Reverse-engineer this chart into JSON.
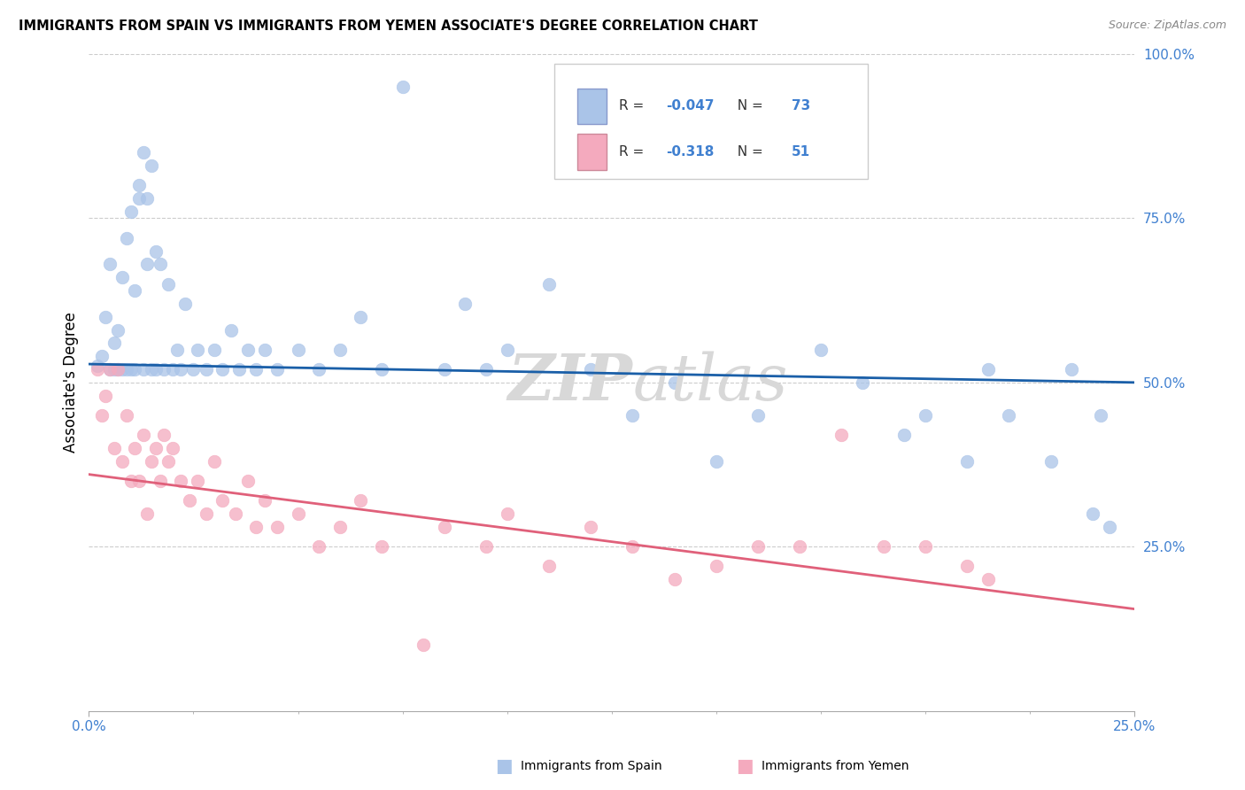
{
  "title": "IMMIGRANTS FROM SPAIN VS IMMIGRANTS FROM YEMEN ASSOCIATE'S DEGREE CORRELATION CHART",
  "source": "Source: ZipAtlas.com",
  "ylabel": "Associate's Degree",
  "xlim": [
    0.0,
    0.25
  ],
  "ylim": [
    0.0,
    1.0
  ],
  "spain_R": -0.047,
  "spain_N": 73,
  "yemen_R": -0.318,
  "yemen_N": 51,
  "color_spain": "#aac4e8",
  "color_yemen": "#f4aabe",
  "color_spain_line": "#1a5fa8",
  "color_yemen_line": "#e0607a",
  "color_axis_labels": "#4080d0",
  "background_color": "#ffffff",
  "grid_color": "#cccccc",
  "watermark_color": "#d8d8d8",
  "spain_x": [
    0.002,
    0.003,
    0.004,
    0.005,
    0.005,
    0.006,
    0.006,
    0.007,
    0.007,
    0.008,
    0.008,
    0.009,
    0.009,
    0.01,
    0.01,
    0.011,
    0.011,
    0.012,
    0.012,
    0.013,
    0.013,
    0.014,
    0.014,
    0.015,
    0.015,
    0.016,
    0.016,
    0.017,
    0.018,
    0.019,
    0.02,
    0.021,
    0.022,
    0.023,
    0.025,
    0.026,
    0.028,
    0.03,
    0.032,
    0.034,
    0.036,
    0.038,
    0.04,
    0.042,
    0.045,
    0.05,
    0.055,
    0.06,
    0.065,
    0.07,
    0.075,
    0.085,
    0.09,
    0.095,
    0.1,
    0.11,
    0.12,
    0.13,
    0.14,
    0.15,
    0.16,
    0.175,
    0.185,
    0.195,
    0.2,
    0.21,
    0.215,
    0.22,
    0.23,
    0.235,
    0.24,
    0.242,
    0.244
  ],
  "spain_y": [
    0.525,
    0.54,
    0.6,
    0.52,
    0.68,
    0.52,
    0.56,
    0.52,
    0.58,
    0.52,
    0.66,
    0.52,
    0.72,
    0.52,
    0.76,
    0.52,
    0.64,
    0.78,
    0.8,
    0.85,
    0.52,
    0.78,
    0.68,
    0.83,
    0.52,
    0.7,
    0.52,
    0.68,
    0.52,
    0.65,
    0.52,
    0.55,
    0.52,
    0.62,
    0.52,
    0.55,
    0.52,
    0.55,
    0.52,
    0.58,
    0.52,
    0.55,
    0.52,
    0.55,
    0.52,
    0.55,
    0.52,
    0.55,
    0.6,
    0.52,
    0.95,
    0.52,
    0.62,
    0.52,
    0.55,
    0.65,
    0.52,
    0.45,
    0.5,
    0.38,
    0.45,
    0.55,
    0.5,
    0.42,
    0.45,
    0.38,
    0.52,
    0.45,
    0.38,
    0.52,
    0.3,
    0.45,
    0.28
  ],
  "yemen_x": [
    0.002,
    0.003,
    0.004,
    0.005,
    0.006,
    0.007,
    0.008,
    0.009,
    0.01,
    0.011,
    0.012,
    0.013,
    0.014,
    0.015,
    0.016,
    0.017,
    0.018,
    0.019,
    0.02,
    0.022,
    0.024,
    0.026,
    0.028,
    0.03,
    0.032,
    0.035,
    0.038,
    0.04,
    0.042,
    0.045,
    0.05,
    0.055,
    0.06,
    0.065,
    0.07,
    0.08,
    0.085,
    0.095,
    0.1,
    0.11,
    0.12,
    0.13,
    0.14,
    0.15,
    0.16,
    0.17,
    0.18,
    0.19,
    0.2,
    0.21,
    0.215
  ],
  "yemen_y": [
    0.52,
    0.45,
    0.48,
    0.52,
    0.4,
    0.52,
    0.38,
    0.45,
    0.35,
    0.4,
    0.35,
    0.42,
    0.3,
    0.38,
    0.4,
    0.35,
    0.42,
    0.38,
    0.4,
    0.35,
    0.32,
    0.35,
    0.3,
    0.38,
    0.32,
    0.3,
    0.35,
    0.28,
    0.32,
    0.28,
    0.3,
    0.25,
    0.28,
    0.32,
    0.25,
    0.1,
    0.28,
    0.25,
    0.3,
    0.22,
    0.28,
    0.25,
    0.2,
    0.22,
    0.25,
    0.25,
    0.42,
    0.25,
    0.25,
    0.22,
    0.2
  ]
}
